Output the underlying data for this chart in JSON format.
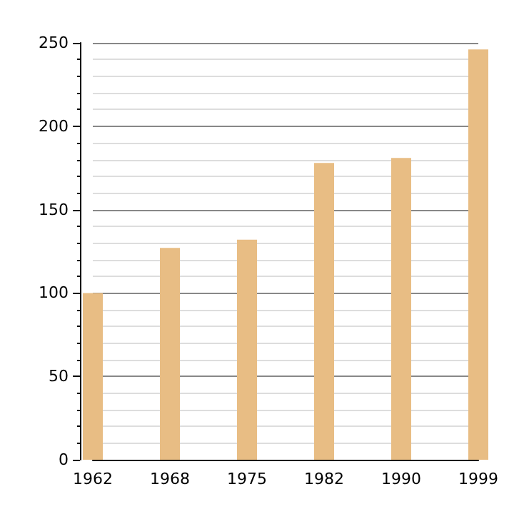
{
  "chart_data": {
    "type": "bar",
    "categories": [
      "1962",
      "1968",
      "1975",
      "1982",
      "1990",
      "1999"
    ],
    "values": [
      100,
      127,
      132,
      178,
      181,
      246
    ],
    "color": "#e8bd84",
    "ylim": [
      0,
      250
    ],
    "yticks": [
      0,
      50,
      100,
      150,
      200,
      250
    ],
    "grid": true
  }
}
